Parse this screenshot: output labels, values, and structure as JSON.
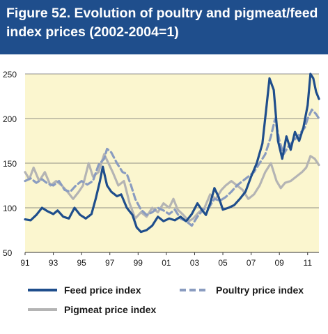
{
  "figure": {
    "title": "Figure 52. Evolution of poultry and pigmeat/feed index prices (2002-2004=1)"
  },
  "colors": {
    "header": "#1f4e8c",
    "plot_background": "#fbf6cf",
    "feed": "#1f4e8c",
    "poultry": "#8a9cc0",
    "pigmeat": "#b4b4b4"
  },
  "legend": {
    "feed": "Feed price index",
    "poultry": "Poultry price index",
    "pigmeat": "Pigmeat price index"
  },
  "chart_data": {
    "type": "line",
    "title": "",
    "xlabel": "",
    "ylabel": "",
    "xlim": [
      1991,
      2011.8
    ],
    "ylim": [
      50,
      250
    ],
    "yticks": [
      50,
      100,
      150,
      200,
      250
    ],
    "xticks": [
      1991,
      1993,
      1995,
      1997,
      1999,
      2001,
      2003,
      2005,
      2007,
      2009,
      2011
    ],
    "xtick_labels": [
      "91",
      "93",
      "95",
      "97",
      "99",
      "01",
      "03",
      "05",
      "07",
      "09",
      "11"
    ],
    "grid": "horizontal",
    "series": [
      {
        "name": "Feed price index",
        "style": "solid",
        "points": [
          [
            1991.0,
            87
          ],
          [
            1991.4,
            86
          ],
          [
            1991.8,
            92
          ],
          [
            1992.2,
            100
          ],
          [
            1992.6,
            96
          ],
          [
            1993.0,
            93
          ],
          [
            1993.3,
            97
          ],
          [
            1993.7,
            90
          ],
          [
            1994.1,
            88
          ],
          [
            1994.5,
            100
          ],
          [
            1994.9,
            92
          ],
          [
            1995.3,
            88
          ],
          [
            1995.7,
            93
          ],
          [
            1996.0,
            110
          ],
          [
            1996.3,
            130
          ],
          [
            1996.5,
            146
          ],
          [
            1996.8,
            125
          ],
          [
            1997.1,
            118
          ],
          [
            1997.5,
            113
          ],
          [
            1997.8,
            115
          ],
          [
            1998.2,
            100
          ],
          [
            1998.6,
            92
          ],
          [
            1998.9,
            78
          ],
          [
            1999.2,
            73
          ],
          [
            1999.6,
            75
          ],
          [
            2000.0,
            80
          ],
          [
            2000.4,
            90
          ],
          [
            2000.8,
            85
          ],
          [
            2001.2,
            88
          ],
          [
            2001.6,
            86
          ],
          [
            2002.0,
            90
          ],
          [
            2002.4,
            85
          ],
          [
            2002.8,
            93
          ],
          [
            2003.2,
            105
          ],
          [
            2003.5,
            98
          ],
          [
            2003.8,
            92
          ],
          [
            2004.1,
            105
          ],
          [
            2004.4,
            122
          ],
          [
            2004.7,
            112
          ],
          [
            2005.0,
            98
          ],
          [
            2005.4,
            100
          ],
          [
            2005.8,
            103
          ],
          [
            2006.2,
            110
          ],
          [
            2006.6,
            118
          ],
          [
            2007.0,
            135
          ],
          [
            2007.4,
            150
          ],
          [
            2007.8,
            172
          ],
          [
            2008.1,
            215
          ],
          [
            2008.3,
            245
          ],
          [
            2008.6,
            232
          ],
          [
            2008.9,
            175
          ],
          [
            2009.2,
            155
          ],
          [
            2009.5,
            180
          ],
          [
            2009.8,
            165
          ],
          [
            2010.1,
            185
          ],
          [
            2010.4,
            175
          ],
          [
            2010.7,
            190
          ],
          [
            2011.0,
            215
          ],
          [
            2011.2,
            250
          ],
          [
            2011.4,
            245
          ],
          [
            2011.6,
            230
          ],
          [
            2011.8,
            222
          ]
        ]
      },
      {
        "name": "Poultry price index",
        "style": "dashed",
        "points": [
          [
            1991.0,
            130
          ],
          [
            1991.4,
            133
          ],
          [
            1991.8,
            128
          ],
          [
            1992.2,
            132
          ],
          [
            1992.6,
            127
          ],
          [
            1993.0,
            125
          ],
          [
            1993.4,
            130
          ],
          [
            1993.8,
            120
          ],
          [
            1994.2,
            118
          ],
          [
            1994.6,
            125
          ],
          [
            1995.0,
            130
          ],
          [
            1995.4,
            126
          ],
          [
            1995.8,
            130
          ],
          [
            1996.2,
            148
          ],
          [
            1996.6,
            155
          ],
          [
            1996.8,
            166
          ],
          [
            1997.1,
            162
          ],
          [
            1997.5,
            150
          ],
          [
            1997.9,
            140
          ],
          [
            1998.2,
            138
          ],
          [
            1998.5,
            125
          ],
          [
            1998.8,
            110
          ],
          [
            1999.2,
            98
          ],
          [
            1999.6,
            92
          ],
          [
            2000.0,
            95
          ],
          [
            2000.4,
            100
          ],
          [
            2000.8,
            97
          ],
          [
            2001.2,
            93
          ],
          [
            2001.6,
            98
          ],
          [
            2002.0,
            88
          ],
          [
            2002.4,
            85
          ],
          [
            2002.8,
            80
          ],
          [
            2003.2,
            90
          ],
          [
            2003.6,
            98
          ],
          [
            2004.0,
            100
          ],
          [
            2004.4,
            110
          ],
          [
            2004.8,
            108
          ],
          [
            2005.2,
            112
          ],
          [
            2005.6,
            118
          ],
          [
            2006.0,
            125
          ],
          [
            2006.4,
            130
          ],
          [
            2006.8,
            135
          ],
          [
            2007.2,
            140
          ],
          [
            2007.6,
            150
          ],
          [
            2008.0,
            160
          ],
          [
            2008.4,
            180
          ],
          [
            2008.7,
            200
          ],
          [
            2009.0,
            175
          ],
          [
            2009.3,
            160
          ],
          [
            2009.6,
            168
          ],
          [
            2010.0,
            175
          ],
          [
            2010.4,
            182
          ],
          [
            2010.8,
            190
          ],
          [
            2011.0,
            200
          ],
          [
            2011.3,
            210
          ],
          [
            2011.6,
            205
          ],
          [
            2011.8,
            200
          ]
        ]
      },
      {
        "name": "Pigmeat price index",
        "style": "solid",
        "points": [
          [
            1991.0,
            140
          ],
          [
            1991.3,
            132
          ],
          [
            1991.6,
            145
          ],
          [
            1992.0,
            130
          ],
          [
            1992.4,
            140
          ],
          [
            1992.8,
            125
          ],
          [
            1993.2,
            130
          ],
          [
            1993.6,
            125
          ],
          [
            1994.0,
            118
          ],
          [
            1994.4,
            110
          ],
          [
            1994.8,
            118
          ],
          [
            1995.1,
            125
          ],
          [
            1995.5,
            150
          ],
          [
            1995.8,
            135
          ],
          [
            1996.2,
            140
          ],
          [
            1996.6,
            160
          ],
          [
            1996.9,
            150
          ],
          [
            1997.2,
            140
          ],
          [
            1997.6,
            125
          ],
          [
            1998.0,
            130
          ],
          [
            1998.4,
            105
          ],
          [
            1998.8,
            88
          ],
          [
            1999.2,
            95
          ],
          [
            1999.6,
            90
          ],
          [
            2000.0,
            100
          ],
          [
            2000.4,
            95
          ],
          [
            2000.8,
            105
          ],
          [
            2001.2,
            100
          ],
          [
            2001.5,
            110
          ],
          [
            2001.8,
            98
          ],
          [
            2002.2,
            92
          ],
          [
            2002.6,
            85
          ],
          [
            2002.9,
            88
          ],
          [
            2003.3,
            95
          ],
          [
            2003.7,
            100
          ],
          [
            2004.1,
            115
          ],
          [
            2004.5,
            110
          ],
          [
            2004.9,
            120
          ],
          [
            2005.2,
            125
          ],
          [
            2005.6,
            130
          ],
          [
            2006.0,
            125
          ],
          [
            2006.4,
            120
          ],
          [
            2006.8,
            110
          ],
          [
            2007.2,
            115
          ],
          [
            2007.6,
            125
          ],
          [
            2008.0,
            140
          ],
          [
            2008.4,
            150
          ],
          [
            2008.8,
            130
          ],
          [
            2009.1,
            122
          ],
          [
            2009.4,
            128
          ],
          [
            2009.8,
            130
          ],
          [
            2010.2,
            135
          ],
          [
            2010.6,
            140
          ],
          [
            2010.9,
            145
          ],
          [
            2011.2,
            158
          ],
          [
            2011.5,
            155
          ],
          [
            2011.8,
            148
          ]
        ]
      }
    ]
  }
}
